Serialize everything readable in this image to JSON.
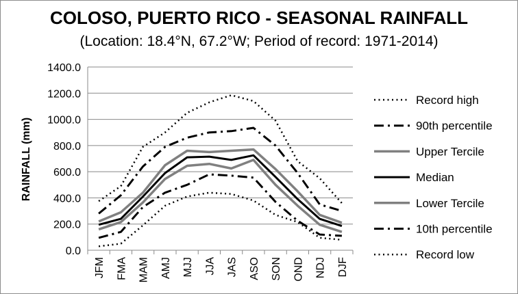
{
  "chart_data": {
    "type": "line",
    "title": "COLOSO, PUERTO RICO - SEASONAL RAINFALL",
    "subtitle": "(Location: 18.4°N, 67.2°W; Period of record: 1971-2014)",
    "ylabel": "RAINFALL (mm)",
    "xlabel": "",
    "categories": [
      "JFM",
      "FMA",
      "MAM",
      "AMJ",
      "MJJ",
      "JJA",
      "JAS",
      "ASO",
      "SON",
      "OND",
      "NDJ",
      "DJF"
    ],
    "ylim": [
      0,
      1400
    ],
    "yticks": [
      "0.0",
      "200.0",
      "400.0",
      "600.0",
      "800.0",
      "1000.0",
      "1200.0",
      "1400.0"
    ],
    "grid": "horizontal",
    "legend": "right",
    "series": [
      {
        "name": "Record high",
        "style": "dotted",
        "color": "#000000",
        "values": [
          375,
          490,
          790,
          900,
          1050,
          1130,
          1185,
          1140,
          990,
          680,
          550,
          360
        ]
      },
      {
        "name": "90th percentile",
        "style": "dashdot",
        "color": "#000000",
        "values": [
          280,
          420,
          640,
          790,
          860,
          900,
          910,
          935,
          800,
          590,
          350,
          300
        ]
      },
      {
        "name": "Upper Tercile",
        "style": "solid",
        "color": "#808080",
        "values": [
          220,
          290,
          440,
          650,
          760,
          750,
          760,
          770,
          620,
          450,
          270,
          210
        ]
      },
      {
        "name": "Median",
        "style": "solid",
        "color": "#000000",
        "values": [
          195,
          240,
          410,
          590,
          710,
          715,
          690,
          725,
          560,
          390,
          240,
          185
        ]
      },
      {
        "name": "Lower Tercile",
        "style": "solid",
        "color": "#808080",
        "values": [
          160,
          215,
          365,
          545,
          645,
          660,
          625,
          690,
          500,
          340,
          195,
          140
        ]
      },
      {
        "name": "10th percentile",
        "style": "dashdot",
        "color": "#000000",
        "values": [
          95,
          140,
          330,
          440,
          500,
          580,
          570,
          555,
          370,
          225,
          120,
          110
        ]
      },
      {
        "name": "Record low",
        "style": "dotted",
        "color": "#000000",
        "values": [
          30,
          50,
          190,
          340,
          410,
          440,
          430,
          380,
          270,
          215,
          95,
          80
        ]
      }
    ]
  }
}
